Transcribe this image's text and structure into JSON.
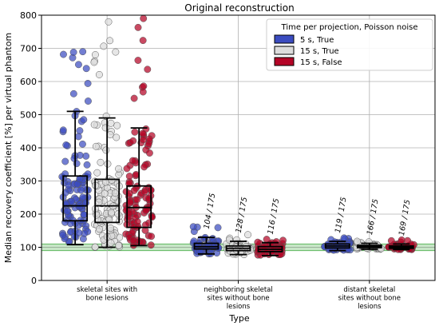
{
  "chart_data": {
    "type": "box",
    "title": "Original reconstruction",
    "xlabel": "Type",
    "ylabel": "Median recovery coefficient [%] per virtual phantom",
    "ylim": [
      0,
      800
    ],
    "yticks": [
      0,
      100,
      200,
      300,
      400,
      500,
      600,
      700,
      800
    ],
    "grid": true,
    "reference_band": {
      "center": 100,
      "low": 90,
      "high": 110,
      "color": "#5fb85f"
    },
    "categories": [
      {
        "label_lines": [
          "skeletal sites with",
          "bone lesions"
        ]
      },
      {
        "label_lines": [
          "neighboring skeletal",
          "sites without bone",
          "lesions"
        ]
      },
      {
        "label_lines": [
          "distant skeletal",
          "sites without bone",
          "lesions"
        ]
      }
    ],
    "legend": {
      "title": "Time per projection, Poisson noise",
      "placement": "top-right",
      "entries": [
        "5 s, True",
        "15 s, True",
        "15 s, False"
      ]
    },
    "series": [
      {
        "name": "5 s, True",
        "color": "#3b4cc0",
        "boxes": [
          {
            "whisker_low": 108,
            "q1": 180,
            "median": 225,
            "q3": 315,
            "whisker_high": 510,
            "max": 690,
            "annotation": ""
          },
          {
            "whisker_low": 80,
            "q1": 95,
            "median": 102,
            "q3": 112,
            "whisker_high": 130,
            "max": 162,
            "annotation": "104 / 175"
          },
          {
            "whisker_low": 90,
            "q1": 98,
            "median": 104,
            "q3": 110,
            "whisker_high": 118,
            "max": 128,
            "annotation": "119 / 175"
          }
        ]
      },
      {
        "name": "15 s, True",
        "color": "#dddddd",
        "boxes": [
          {
            "whisker_low": 100,
            "q1": 175,
            "median": 225,
            "q3": 305,
            "whisker_high": 490,
            "max": 780,
            "annotation": ""
          },
          {
            "whisker_low": 78,
            "q1": 90,
            "median": 97,
            "q3": 104,
            "whisker_high": 118,
            "max": 138,
            "annotation": "128 / 175"
          },
          {
            "whisker_low": 94,
            "q1": 99,
            "median": 102,
            "q3": 106,
            "whisker_high": 112,
            "max": 118,
            "annotation": "166 / 175"
          }
        ]
      },
      {
        "name": "15 s, False",
        "color": "#b40426",
        "boxes": [
          {
            "whisker_low": 105,
            "q1": 160,
            "median": 220,
            "q3": 285,
            "whisker_high": 460,
            "max": 790,
            "annotation": ""
          },
          {
            "whisker_low": 75,
            "q1": 87,
            "median": 94,
            "q3": 102,
            "whisker_high": 114,
            "max": 124,
            "annotation": "116 / 175"
          },
          {
            "whisker_low": 93,
            "q1": 97,
            "median": 101,
            "q3": 104,
            "whisker_high": 110,
            "max": 122,
            "annotation": "169 / 175"
          }
        ]
      }
    ]
  }
}
